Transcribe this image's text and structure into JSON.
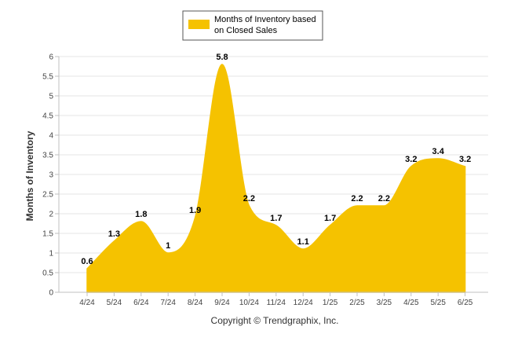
{
  "colors": {
    "area": "#f5c200",
    "grid": "#e6e6e6",
    "axis": "#c0c0c0",
    "legend_border": "#555555"
  },
  "footer": {
    "copyright": "Copyright © Trendgraphix, Inc."
  },
  "chart_data": {
    "type": "area",
    "title": "",
    "xlabel": "",
    "ylabel": "Months of Inventory",
    "ylim": [
      0,
      6
    ],
    "yticks": [
      "0",
      "0.5",
      "1",
      "1.5",
      "2",
      "2.5",
      "3",
      "3.5",
      "4",
      "4.5",
      "5",
      "5.5",
      "6"
    ],
    "grid": true,
    "legend_position": "top-center",
    "categories": [
      "4/24",
      "5/24",
      "6/24",
      "7/24",
      "8/24",
      "9/24",
      "10/24",
      "11/24",
      "12/24",
      "1/25",
      "2/25",
      "3/25",
      "4/25",
      "5/25",
      "6/25"
    ],
    "series": [
      {
        "name": "Months of Inventory based on Closed Sales",
        "name_lines": [
          "Months of Inventory based",
          "on Closed Sales"
        ],
        "values": [
          0.6,
          1.3,
          1.8,
          1,
          1.9,
          5.8,
          2.2,
          1.7,
          1.1,
          1.7,
          2.2,
          2.2,
          3.2,
          3.4,
          3.2
        ],
        "labels": [
          "0.6",
          "1.3",
          "1.8",
          "1",
          "1.9",
          "5.8",
          "2.2",
          "1.7",
          "1.1",
          "1.7",
          "2.2",
          "2.2",
          "3.2",
          "3.4",
          "3.2"
        ]
      }
    ]
  }
}
